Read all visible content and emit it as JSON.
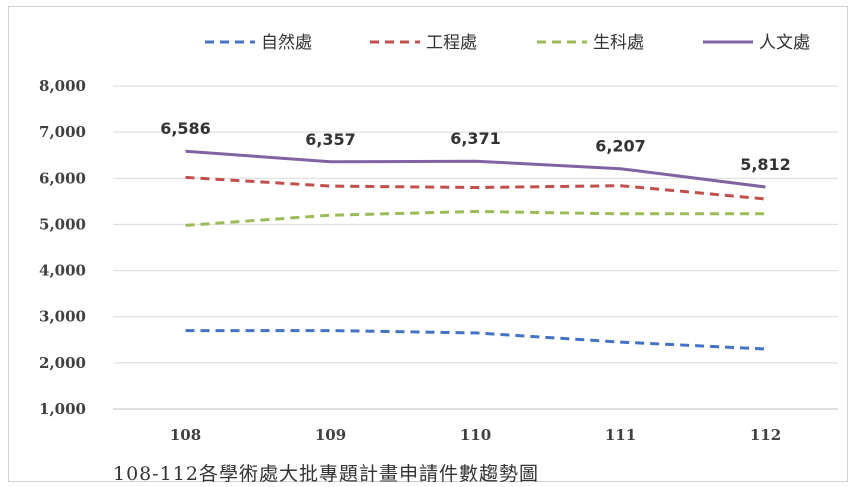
{
  "caption": "108-112各學術處大批專題計畫申請件數趨勢圖",
  "chart_data": {
    "type": "line",
    "title": "",
    "xlabel": "",
    "ylabel": "",
    "categories": [
      "108",
      "109",
      "110",
      "111",
      "112"
    ],
    "y_ticks": [
      "1,000",
      "2,000",
      "3,000",
      "4,000",
      "5,000",
      "6,000",
      "7,000",
      "8,000"
    ],
    "ylim": [
      1000,
      8000
    ],
    "grid": true,
    "legend_position": "top",
    "series": [
      {
        "name": "自然處",
        "values": [
          2700,
          2700,
          2650,
          2450,
          2300
        ],
        "color": "#4472c4",
        "dash": "dashed",
        "show_labels": false
      },
      {
        "name": "工程處",
        "values": [
          6020,
          5830,
          5800,
          5840,
          5550
        ],
        "color": "#c0504d",
        "dash": "dashed",
        "show_labels": false
      },
      {
        "name": "生科處",
        "values": [
          4980,
          5200,
          5280,
          5230,
          5230
        ],
        "color": "#9bbb59",
        "dash": "dashed",
        "show_labels": false
      },
      {
        "name": "人文處",
        "values": [
          6586,
          6357,
          6371,
          6207,
          5812
        ],
        "color": "#8064a2",
        "dash": "solid",
        "show_labels": true,
        "labels": [
          "6,586",
          "6,357",
          "6,371",
          "6,207",
          "5,812"
        ]
      }
    ]
  }
}
